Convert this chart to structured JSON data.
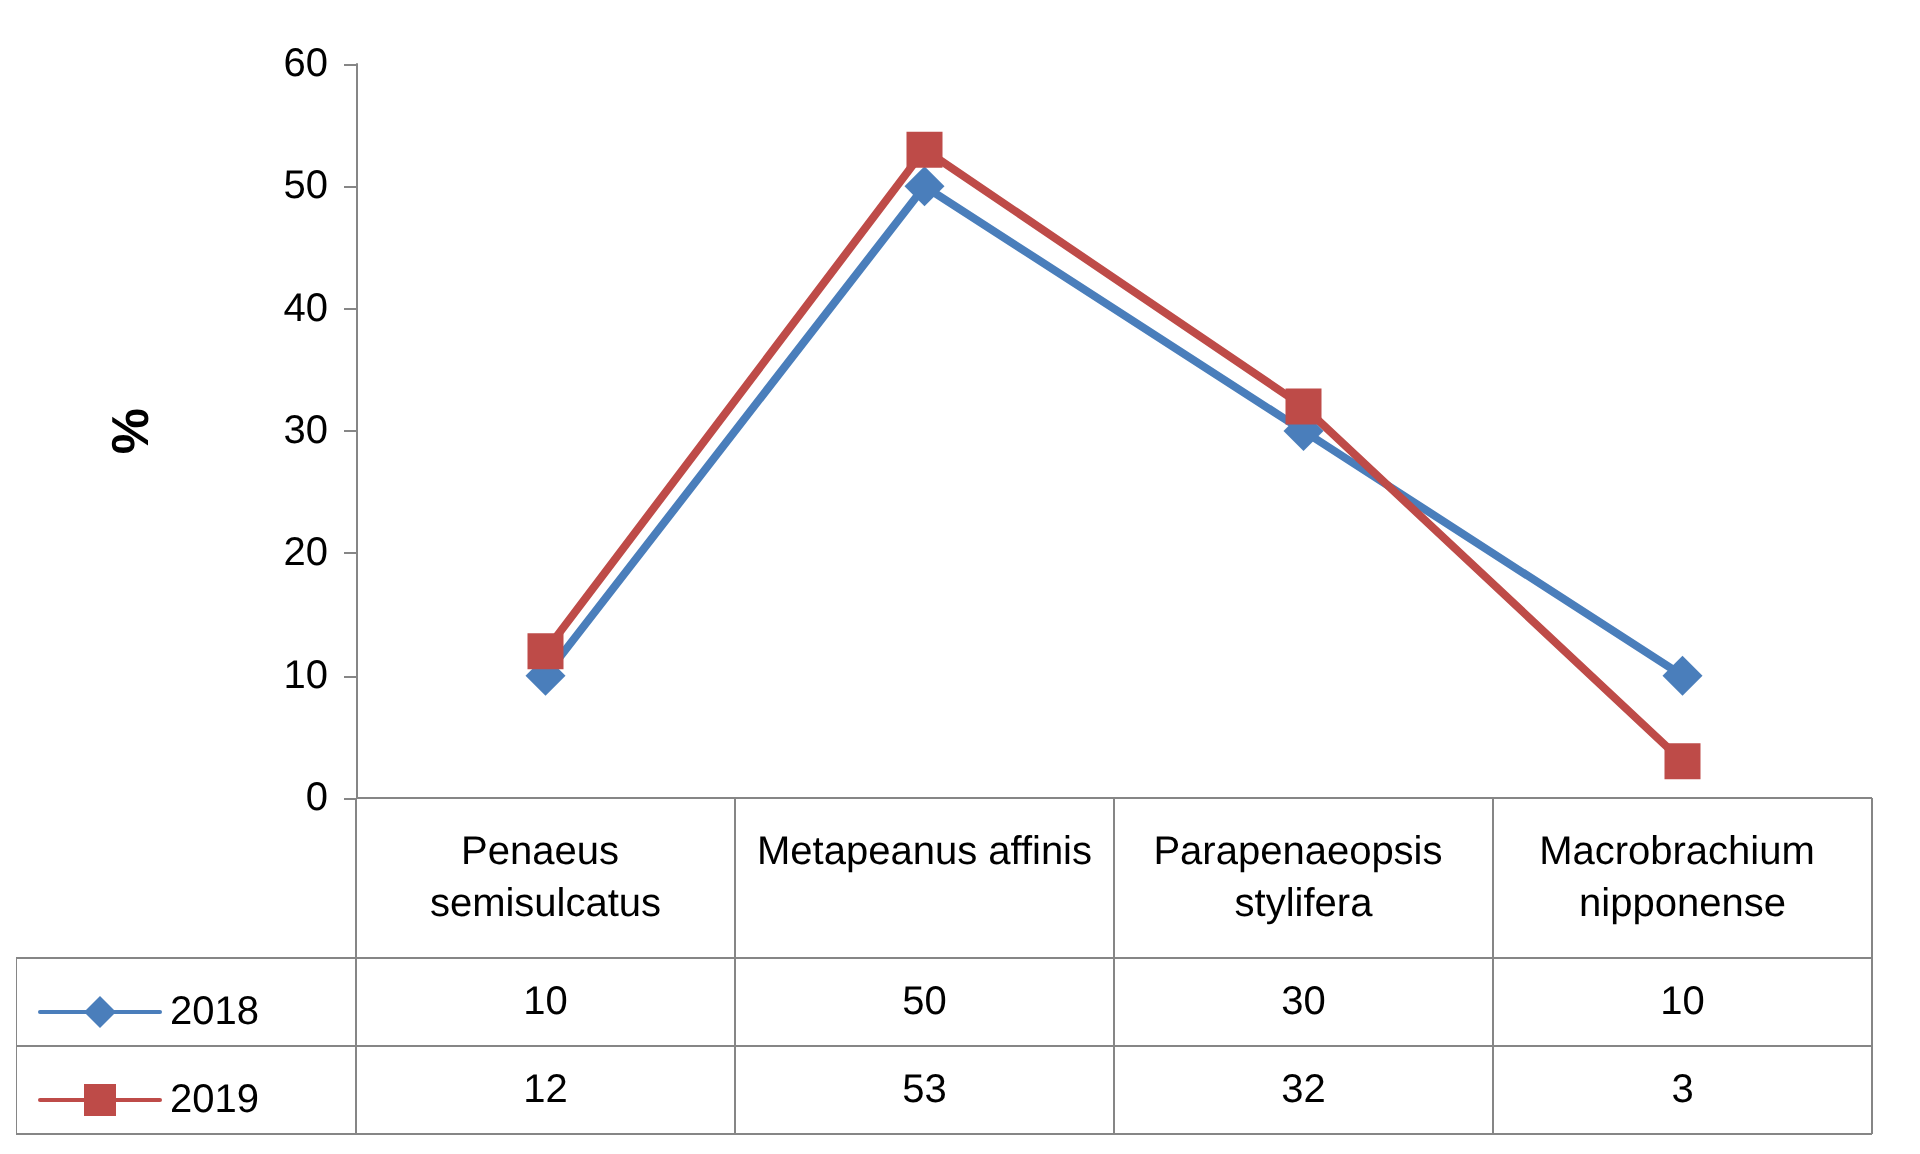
{
  "chart_data": {
    "type": "line",
    "ylabel": "%",
    "categories": [
      "Penaeus semisulcatus",
      "Metapeanus affinis",
      "Parapenaeopsis stylifera",
      "Macrobrachium nipponense"
    ],
    "series": [
      {
        "name": "2018",
        "color": "#4a7ebb",
        "marker": "diamond",
        "values": [
          10,
          50,
          30,
          10
        ]
      },
      {
        "name": "2019",
        "color": "#be4b48",
        "marker": "square",
        "values": [
          12,
          53,
          32,
          3
        ]
      }
    ],
    "ylim": [
      0,
      60
    ],
    "yticks": [
      0,
      10,
      20,
      30,
      40,
      50,
      60
    ],
    "grid": false,
    "legend": "bottom left",
    "data_labels": true,
    "line_style": "solid"
  }
}
